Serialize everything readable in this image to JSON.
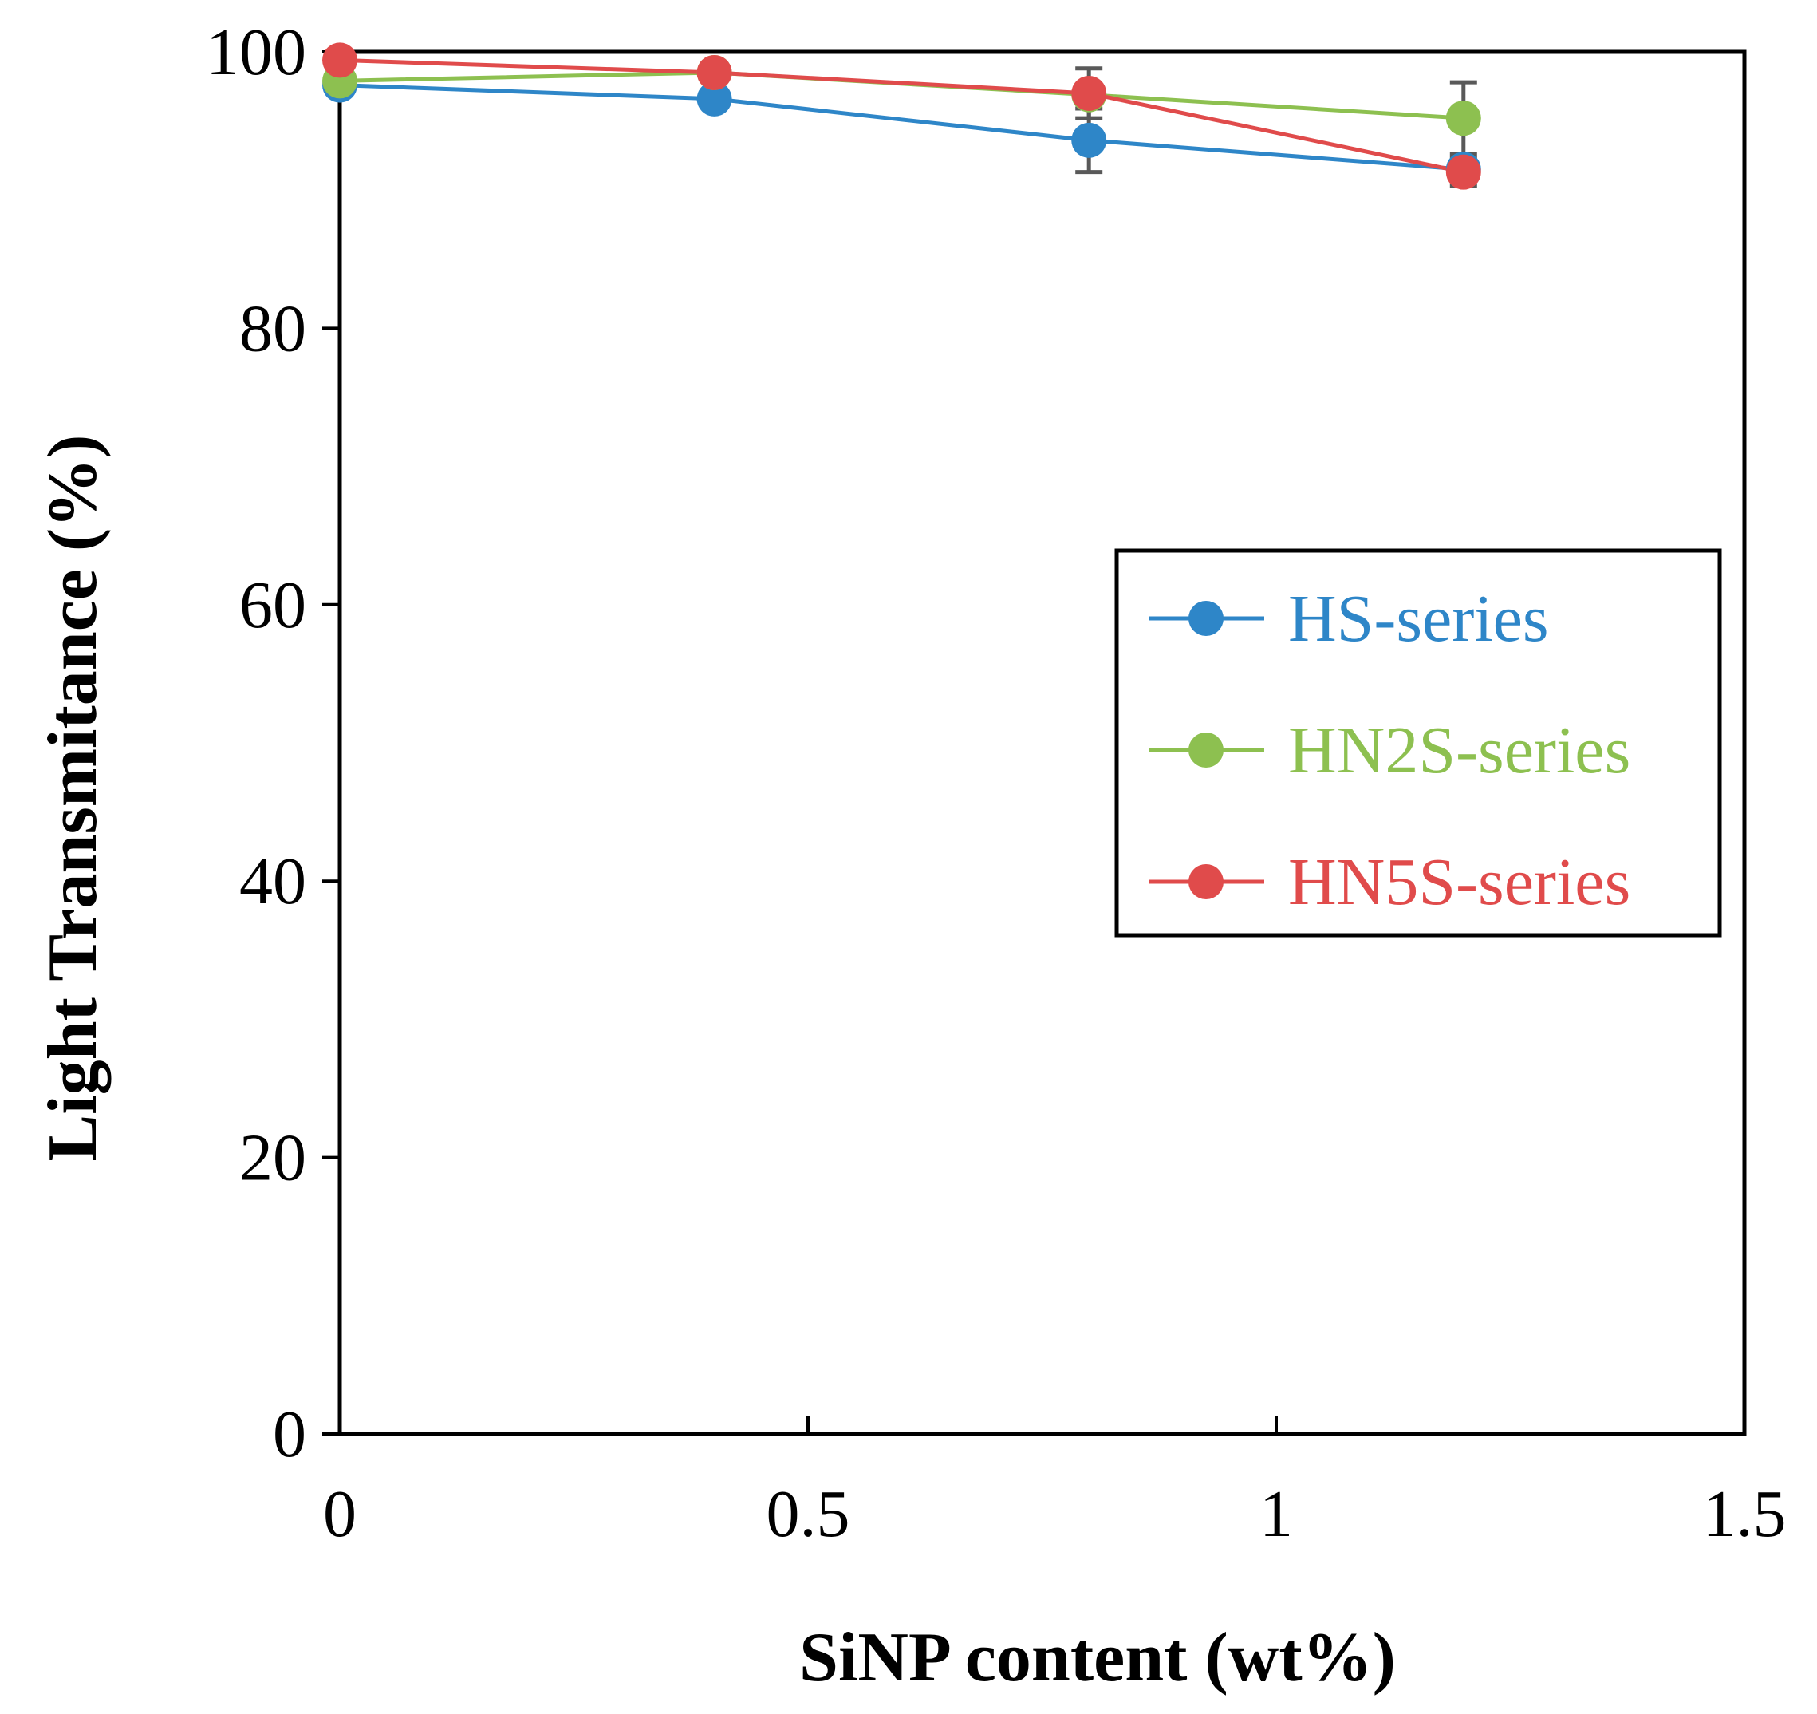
{
  "chart_data": {
    "type": "line",
    "title": "",
    "xlabel": "SiNP content (wt%)",
    "ylabel": "Light Transmitance (%)",
    "xlim": [
      0,
      1.5
    ],
    "ylim": [
      0,
      100
    ],
    "xticks": [
      0,
      0.5,
      1,
      1.5
    ],
    "yticks": [
      0,
      20,
      40,
      60,
      80,
      100
    ],
    "xtick_labels": [
      "0",
      "0.5",
      "1",
      "1.5"
    ],
    "ytick_labels": [
      "0",
      "20",
      "40",
      "60",
      "80",
      "100"
    ],
    "grid": false,
    "legend_position": "right-middle",
    "series": [
      {
        "name": "HS-series",
        "color": "#2E86C8",
        "x": [
          0,
          0.4,
          0.8,
          1.2
        ],
        "values": [
          97.6,
          96.6,
          93.6,
          91.5
        ],
        "error": [
          0,
          0,
          2.3,
          0
        ]
      },
      {
        "name": "HN2S-series",
        "color": "#8DC050",
        "x": [
          0,
          0.4,
          0.8,
          1.2
        ],
        "values": [
          97.9,
          98.5,
          96.9,
          95.2
        ],
        "error": [
          0,
          0,
          0,
          2.6
        ]
      },
      {
        "name": "HN5S-series",
        "color": "#E04B4B",
        "x": [
          0,
          0.4,
          0.8,
          1.2
        ],
        "values": [
          99.4,
          98.5,
          97.0,
          91.3
        ],
        "error": [
          0,
          0,
          1.8,
          1.0
        ]
      }
    ]
  }
}
